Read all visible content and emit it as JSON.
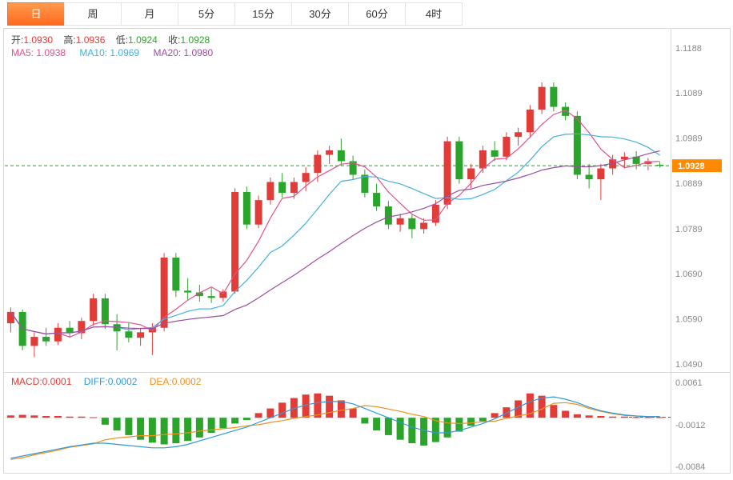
{
  "tabs": {
    "active_index": 0,
    "items": [
      {
        "label": "日"
      },
      {
        "label": "周"
      },
      {
        "label": "月"
      },
      {
        "label": "5分"
      },
      {
        "label": "15分"
      },
      {
        "label": "30分"
      },
      {
        "label": "60分"
      },
      {
        "label": "4时"
      }
    ]
  },
  "legend": {
    "ohlc": [
      {
        "label": "开:",
        "value": "1.0930",
        "color": "#e23c39"
      },
      {
        "label": "高:",
        "value": "1.0936",
        "color": "#e23c39"
      },
      {
        "label": "低:",
        "value": "1.0924",
        "color": "#2ba42b"
      },
      {
        "label": "收:",
        "value": "1.0928",
        "color": "#2ba42b"
      }
    ],
    "ma": [
      {
        "label": "MA5: 1.0938",
        "color": "#e0538f"
      },
      {
        "label": "MA10: 1.0969",
        "color": "#45b0dc"
      },
      {
        "label": "MA20: 1.0980",
        "color": "#9a4f9e"
      }
    ],
    "macd": [
      {
        "label": "MACD:0.0001",
        "color": "#e23c39"
      },
      {
        "label": "DIFF:0.0002",
        "color": "#2f9ad8"
      },
      {
        "label": "DEA:0.0002",
        "color": "#f0901e"
      }
    ]
  },
  "chart_data": {
    "type": "candlestick",
    "title": "",
    "y_axis": {
      "ticks": [
        1.1188,
        1.1089,
        1.0989,
        1.0889,
        1.0789,
        1.069,
        1.059,
        1.049
      ],
      "current_price": 1.0928
    },
    "ohlc_last": {
      "open": 1.093,
      "high": 1.0936,
      "low": 1.0924,
      "close": 1.0928
    },
    "ma_windows": [
      5,
      10,
      20
    ],
    "ma_last_values": {
      "ma5": 1.0938,
      "ma10": 1.0969,
      "ma20": 1.098
    },
    "candles": [
      [
        1.058,
        1.0615,
        1.056,
        1.0605
      ],
      [
        1.0605,
        1.061,
        1.052,
        1.053
      ],
      [
        1.053,
        1.056,
        1.0505,
        1.055
      ],
      [
        1.055,
        1.057,
        1.053,
        1.054
      ],
      [
        1.054,
        1.058,
        1.0532,
        1.057
      ],
      [
        1.057,
        1.0585,
        1.0548,
        1.0558
      ],
      [
        1.0558,
        1.0592,
        1.0545,
        1.0585
      ],
      [
        1.0585,
        1.0645,
        1.0575,
        1.0635
      ],
      [
        1.0635,
        1.0645,
        1.0568,
        1.0578
      ],
      [
        1.0578,
        1.06,
        1.052,
        1.0562
      ],
      [
        1.0562,
        1.058,
        1.0538,
        1.0548
      ],
      [
        1.0548,
        1.0568,
        1.053,
        1.056
      ],
      [
        1.056,
        1.058,
        1.051,
        1.057
      ],
      [
        1.057,
        1.0735,
        1.0562,
        1.0725
      ],
      [
        1.0725,
        1.0735,
        1.0638,
        1.0652
      ],
      [
        1.0652,
        1.068,
        1.0632,
        1.0648
      ],
      [
        1.0648,
        1.0665,
        1.0628,
        1.064
      ],
      [
        1.064,
        1.0658,
        1.0625,
        1.0636
      ],
      [
        1.0636,
        1.0655,
        1.0628,
        1.065
      ],
      [
        1.065,
        1.0878,
        1.0645,
        1.087
      ],
      [
        1.087,
        1.0882,
        1.0788,
        1.0798
      ],
      [
        1.0798,
        1.0862,
        1.079,
        1.0852
      ],
      [
        1.0852,
        1.0902,
        1.0842,
        1.0892
      ],
      [
        1.0892,
        1.0912,
        1.0858,
        1.0868
      ],
      [
        1.0868,
        1.0902,
        1.0855,
        1.0892
      ],
      [
        1.0892,
        1.0925,
        1.0872,
        1.0912
      ],
      [
        1.0912,
        1.0962,
        1.0892,
        1.0952
      ],
      [
        1.0952,
        1.0972,
        1.0932,
        1.0962
      ],
      [
        1.0962,
        1.0988,
        1.0928,
        1.0938
      ],
      [
        1.0938,
        1.095,
        1.0898,
        1.0908
      ],
      [
        1.0908,
        1.092,
        1.0858,
        1.0868
      ],
      [
        1.0868,
        1.0888,
        1.0828,
        1.0838
      ],
      [
        1.0838,
        1.085,
        1.0788,
        1.0798
      ],
      [
        1.0798,
        1.0822,
        1.0782,
        1.0812
      ],
      [
        1.0812,
        1.082,
        1.0768,
        1.0788
      ],
      [
        1.0788,
        1.0812,
        1.0778,
        1.0802
      ],
      [
        1.0802,
        1.0852,
        1.0795,
        1.0842
      ],
      [
        1.0842,
        1.0992,
        1.0832,
        1.0982
      ],
      [
        1.0982,
        1.0992,
        1.0888,
        1.0898
      ],
      [
        1.0898,
        1.0932,
        1.0878,
        1.0922
      ],
      [
        1.0922,
        1.0972,
        1.0912,
        1.0962
      ],
      [
        1.0962,
        1.0982,
        1.0938,
        1.0948
      ],
      [
        1.0948,
        1.1002,
        1.094,
        1.0992
      ],
      [
        1.0992,
        1.1012,
        1.0972,
        1.1002
      ],
      [
        1.1002,
        1.1062,
        1.0992,
        1.1052
      ],
      [
        1.1052,
        1.1112,
        1.1042,
        1.1102
      ],
      [
        1.1102,
        1.1112,
        1.1048,
        1.1058
      ],
      [
        1.1058,
        1.1068,
        1.1028,
        1.1038
      ],
      [
        1.1038,
        1.1048,
        1.0898,
        1.0908
      ],
      [
        1.0908,
        1.0932,
        1.0878,
        1.0898
      ],
      [
        1.0898,
        1.0932,
        1.0852,
        1.0922
      ],
      [
        1.0922,
        1.0952,
        1.0908,
        1.0942
      ],
      [
        1.0942,
        1.0958,
        1.0922,
        1.0948
      ],
      [
        1.0948,
        1.096,
        1.092,
        1.0932
      ],
      [
        1.0932,
        1.0945,
        1.0918,
        1.0938
      ],
      [
        1.093,
        1.0936,
        1.0924,
        1.0928
      ]
    ],
    "macd": {
      "ticks": [
        0.0061,
        -0.0012,
        -0.0084
      ],
      "current": 0.0001,
      "hist": [
        0.0004,
        0.0005,
        0.0004,
        0.0003,
        0.0003,
        0.0002,
        0.0002,
        0.0001,
        -0.0012,
        -0.0022,
        -0.003,
        -0.0038,
        -0.0043,
        -0.0046,
        -0.0044,
        -0.004,
        -0.0034,
        -0.0026,
        -0.0018,
        -0.001,
        -0.0004,
        0.0008,
        0.0016,
        0.0026,
        0.0034,
        0.004,
        0.0042,
        0.0038,
        0.003,
        0.0016,
        -0.001,
        -0.0022,
        -0.003,
        -0.0038,
        -0.0044,
        -0.0048,
        -0.0042,
        -0.0034,
        -0.0024,
        -0.0014,
        -0.0006,
        0.0008,
        0.0018,
        0.003,
        0.0042,
        0.0038,
        0.0022,
        0.0012,
        0.0006,
        0.0004,
        0.0003,
        0.0002,
        0.0002,
        0.0001,
        0.0001,
        0.0001
      ],
      "diff": [
        -0.007,
        -0.0066,
        -0.0062,
        -0.0058,
        -0.0054,
        -0.005,
        -0.0047,
        -0.0044,
        -0.0044,
        -0.0046,
        -0.0048,
        -0.005,
        -0.0052,
        -0.0052,
        -0.005,
        -0.0046,
        -0.004,
        -0.0034,
        -0.0028,
        -0.0022,
        -0.0016,
        -0.0008,
        0.0,
        0.0008,
        0.0016,
        0.0022,
        0.0026,
        0.0028,
        0.0028,
        0.0024,
        0.0016,
        0.0008,
        0.0,
        -0.0008,
        -0.0016,
        -0.0022,
        -0.0026,
        -0.0026,
        -0.0022,
        -0.0016,
        -0.001,
        -0.0002,
        0.0008,
        0.0018,
        0.0028,
        0.0034,
        0.0036,
        0.0032,
        0.0026,
        0.0018,
        0.0012,
        0.0008,
        0.0005,
        0.0003,
        0.0002,
        0.0002
      ],
      "dea": [
        -0.0072,
        -0.0069,
        -0.0064,
        -0.006,
        -0.0056,
        -0.0051,
        -0.0048,
        -0.0045,
        -0.0038,
        -0.0035,
        -0.0033,
        -0.0031,
        -0.0031,
        -0.0029,
        -0.0028,
        -0.0026,
        -0.0023,
        -0.0021,
        -0.0019,
        -0.0017,
        -0.0014,
        -0.0012,
        -0.0008,
        -0.0005,
        -0.0001,
        0.0002,
        0.0005,
        0.0009,
        0.0013,
        0.0016,
        0.0021,
        0.0019,
        0.0015,
        0.0011,
        0.0006,
        0.0002,
        -0.0005,
        -0.0009,
        -0.001,
        -0.0009,
        -0.0007,
        -0.0006,
        -0.0001,
        0.0003,
        0.0007,
        0.0015,
        0.0025,
        0.0026,
        0.0023,
        0.0016,
        0.0011,
        0.0007,
        0.0004,
        0.0003,
        0.0002,
        0.0002
      ]
    },
    "colors": {
      "up": "#e23c39",
      "down": "#2ba42b",
      "ma5": "#e0538f",
      "ma10": "#45b0dc",
      "ma20": "#9a4f9e",
      "diff": "#2f9ad8",
      "dea": "#f0901e",
      "price_line": "#21a121",
      "price_tag_bg": "#ff8a00",
      "price_tag_text": "#ffffff",
      "axis_text": "#888888",
      "border": "#d8d8d8"
    }
  }
}
